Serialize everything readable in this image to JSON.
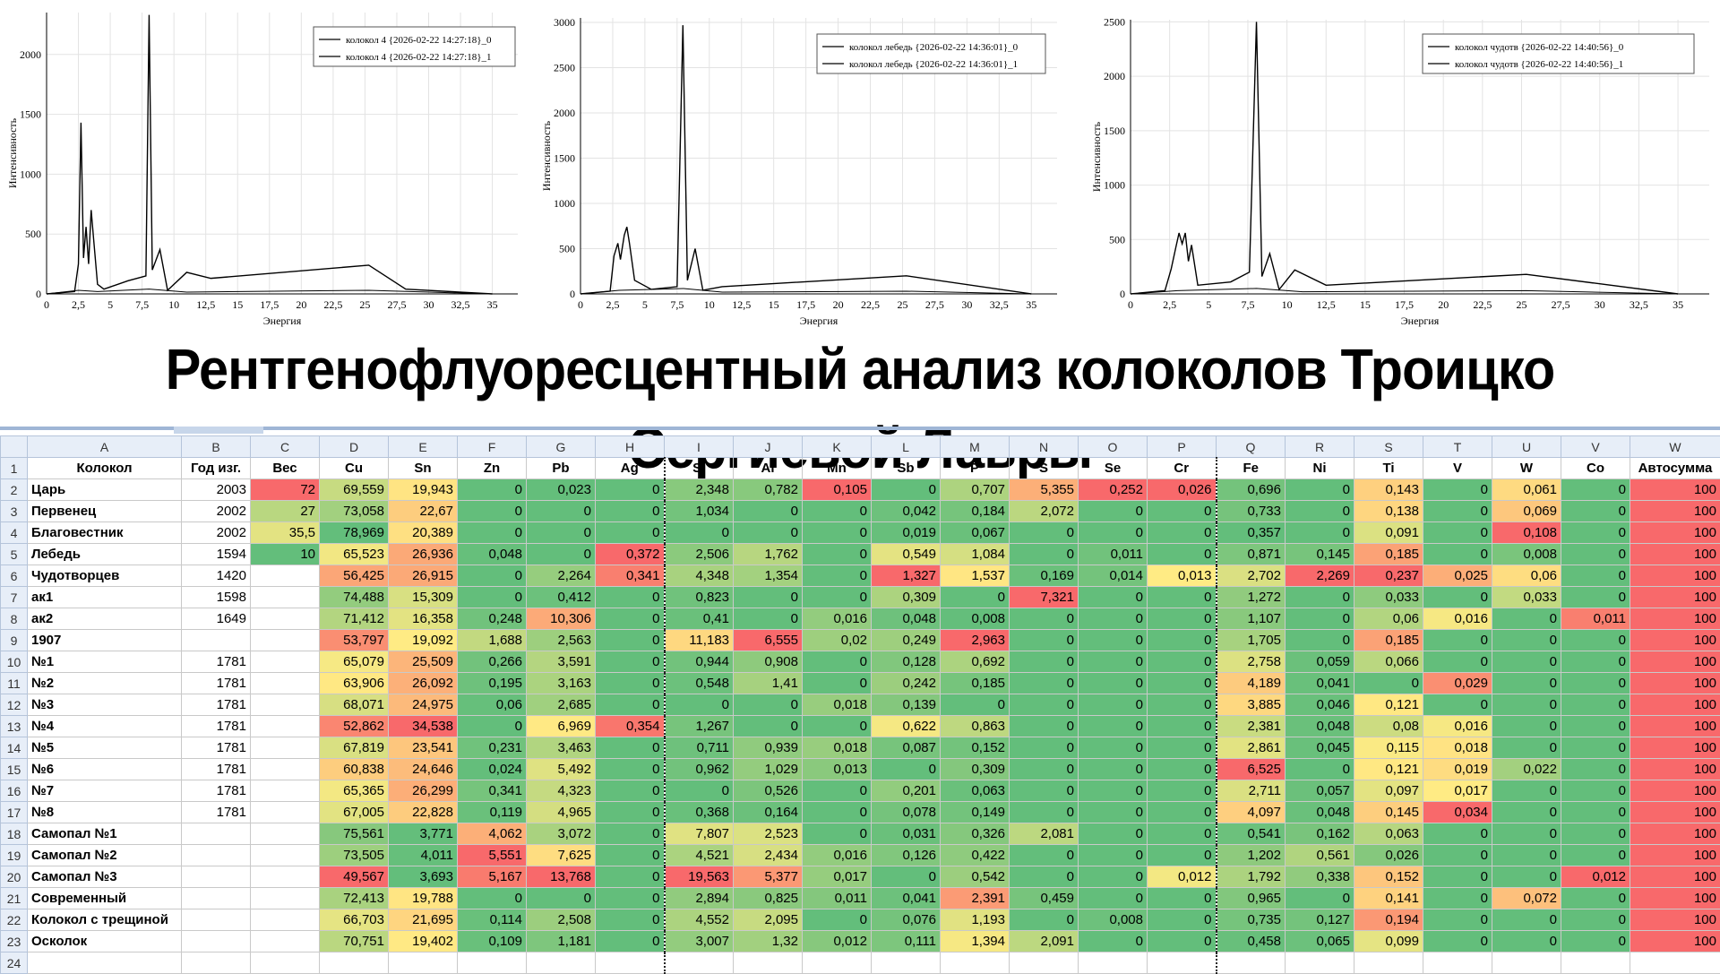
{
  "charts": [
    {
      "legend": [
        "колокол 4 {2026-02-22 14:27:18}_0",
        "колокол 4 {2026-02-22 14:27:18}_1"
      ],
      "ylabel": "Интенсивность",
      "xlabel": "Энергия",
      "xticks": [
        "0",
        "2,5",
        "5",
        "7,5",
        "10",
        "12,5",
        "15",
        "17,5",
        "20",
        "22,5",
        "25",
        "27,5",
        "30",
        "32,5",
        "35"
      ],
      "yticks": [
        "0",
        "500",
        "1000",
        "1500",
        "2000"
      ],
      "ymax": 2350
    },
    {
      "legend": [
        "колокол лебедь {2026-02-22 14:36:01}_0",
        "колокол лебедь {2026-02-22 14:36:01}_1"
      ],
      "ylabel": "Интенсивность",
      "xlabel": "Энергия",
      "xticks": [
        "0",
        "2,5",
        "5",
        "7,5",
        "10",
        "12,5",
        "15",
        "17,5",
        "20",
        "22,5",
        "25",
        "27,5",
        "30",
        "32,5",
        "35"
      ],
      "yticks": [
        "0",
        "500",
        "1000",
        "1500",
        "2000",
        "2500",
        "3000"
      ],
      "ymax": 3050
    },
    {
      "legend": [
        "колокол чудотв {2026-02-22 14:40:56}_0",
        "колокол чудотв {2026-02-22 14:40:56}_1"
      ],
      "ylabel": "Интенсивность",
      "xlabel": "Энергия",
      "xticks": [
        "0",
        "2,5",
        "5",
        "7,5",
        "10",
        "12,5",
        "15",
        "17,5",
        "20",
        "22,5",
        "25",
        "27,5",
        "30",
        "32,5",
        "35"
      ],
      "yticks": [
        "0",
        "500",
        "1000",
        "1500",
        "2000",
        "2500"
      ],
      "ymax": 2520
    }
  ],
  "chart_data": [
    {
      "type": "line",
      "title": "",
      "xlabel": "Энергия",
      "ylabel": "Интенсивность",
      "xlim": [
        0,
        37
      ],
      "ylim": [
        0,
        2350
      ],
      "series": [
        {
          "name": "колокол 4 {2026-02-22 14:27:18}_0",
          "x": [
            0,
            2.2,
            2.5,
            2.7,
            2.9,
            3.1,
            3.3,
            3.5,
            3.7,
            4.0,
            4.5,
            6.4,
            7.8,
            8.05,
            8.3,
            8.9,
            9.5,
            11.0,
            12.9,
            25.3,
            28.2,
            35
          ],
          "y": [
            0,
            20,
            250,
            1430,
            300,
            560,
            250,
            700,
            450,
            80,
            40,
            110,
            150,
            2330,
            200,
            370,
            30,
            180,
            130,
            240,
            40,
            0
          ]
        },
        {
          "name": "колокол 4 {2026-02-22 14:27:18}_1",
          "x": [
            0,
            2.5,
            4,
            8.05,
            11,
            25.3,
            35
          ],
          "y": [
            0,
            30,
            20,
            40,
            15,
            30,
            0
          ]
        }
      ]
    },
    {
      "type": "line",
      "title": "",
      "xlabel": "Энергия",
      "ylabel": "Интенсивность",
      "xlim": [
        0,
        37
      ],
      "ylim": [
        0,
        3050
      ],
      "series": [
        {
          "name": "колокол лебедь {2026-02-22 14:36:01}_0",
          "x": [
            0,
            2.3,
            2.6,
            2.9,
            3.1,
            3.4,
            3.6,
            3.8,
            4.2,
            5.5,
            7.5,
            7.95,
            8.3,
            8.9,
            9.5,
            11.0,
            25.3,
            35
          ],
          "y": [
            0,
            30,
            420,
            560,
            380,
            650,
            740,
            560,
            150,
            50,
            80,
            2970,
            150,
            500,
            40,
            80,
            200,
            0
          ]
        },
        {
          "name": "колокол лебедь {2026-02-22 14:36:01}_1",
          "x": [
            0,
            3,
            8,
            11,
            25.3,
            35
          ],
          "y": [
            0,
            40,
            60,
            20,
            30,
            0
          ]
        }
      ]
    },
    {
      "type": "line",
      "title": "",
      "xlabel": "Энергия",
      "ylabel": "Интенсивность",
      "xlim": [
        0,
        37
      ],
      "ylim": [
        0,
        2520
      ],
      "series": [
        {
          "name": "колокол чудотв {2026-02-22 14:40:56}_0",
          "x": [
            0,
            2.2,
            2.6,
            2.9,
            3.1,
            3.3,
            3.5,
            3.7,
            3.9,
            4.3,
            6.4,
            7.6,
            8.05,
            8.4,
            8.9,
            9.5,
            10.5,
            12.5,
            25.3,
            35
          ],
          "y": [
            0,
            30,
            230,
            430,
            560,
            460,
            560,
            300,
            450,
            80,
            110,
            200,
            2500,
            160,
            370,
            40,
            220,
            80,
            180,
            0
          ]
        },
        {
          "name": "колокол чудотв {2026-02-22 14:40:56}_1",
          "x": [
            0,
            3,
            8.05,
            11,
            25.3,
            35
          ],
          "y": [
            0,
            30,
            50,
            20,
            30,
            0
          ]
        }
      ]
    },
    {
      "type": "table",
      "title": "Рентгенофлуоресцентный анализ колоколов Троицко Сергиевой Лавры",
      "columns": [
        "Колокол",
        "Год изг.",
        "Вес",
        "Cu",
        "Sn",
        "Zn",
        "Pb",
        "Ag",
        "Si",
        "Al",
        "Mn",
        "Sb",
        "P",
        "S",
        "Se",
        "Cr",
        "Fe",
        "Ni",
        "Ti",
        "V",
        "W",
        "Co",
        "Автосумма"
      ]
    }
  ],
  "banner": "Рентгенофлуоресцентный анализ колоколов Троицко Сергиевой Лавры",
  "sheet": {
    "col_letters": [
      "A",
      "B",
      "C",
      "D",
      "E",
      "F",
      "G",
      "H",
      "I",
      "J",
      "K",
      "L",
      "M",
      "N",
      "O",
      "P",
      "Q",
      "R",
      "S",
      "T",
      "U",
      "V",
      "W"
    ],
    "headers": [
      "Колокол",
      "Год изг.",
      "Вес",
      "Cu",
      "Sn",
      "Zn",
      "Pb",
      "Ag",
      "Si",
      "Al",
      "Mn",
      "Sb",
      "P",
      "S",
      "Se",
      "Cr",
      "Fe",
      "Ni",
      "Ti",
      "V",
      "W",
      "Co",
      "Автосумма"
    ],
    "rows": [
      [
        "Царь",
        "2003",
        "72",
        "69,559",
        "19,943",
        "0",
        "0,023",
        "0",
        "2,348",
        "0,782",
        "0,105",
        "0",
        "0,707",
        "5,355",
        "0,252",
        "0,026",
        "0,696",
        "0",
        "0,143",
        "0",
        "0,061",
        "0",
        "100"
      ],
      [
        "Первенец",
        "2002",
        "27",
        "73,058",
        "22,67",
        "0",
        "0",
        "0",
        "1,034",
        "0",
        "0",
        "0,042",
        "0,184",
        "2,072",
        "0",
        "0",
        "0,733",
        "0",
        "0,138",
        "0",
        "0,069",
        "0",
        "100"
      ],
      [
        "Благовестник",
        "2002",
        "35,5",
        "78,969",
        "20,389",
        "0",
        "0",
        "0",
        "0",
        "0",
        "0",
        "0,019",
        "0,067",
        "0",
        "0",
        "0",
        "0,357",
        "0",
        "0,091",
        "0",
        "0,108",
        "0",
        "100"
      ],
      [
        "Лебедь",
        "1594",
        "10",
        "65,523",
        "26,936",
        "0,048",
        "0",
        "0,372",
        "2,506",
        "1,762",
        "0",
        "0,549",
        "1,084",
        "0",
        "0,011",
        "0",
        "0,871",
        "0,145",
        "0,185",
        "0",
        "0,008",
        "0",
        "100"
      ],
      [
        "Чудотворцев",
        "1420",
        "",
        "56,425",
        "26,915",
        "0",
        "2,264",
        "0,341",
        "4,348",
        "1,354",
        "0",
        "1,327",
        "1,537",
        "0,169",
        "0,014",
        "0,013",
        "2,702",
        "2,269",
        "0,237",
        "0,025",
        "0,06",
        "0",
        "100"
      ],
      [
        "ак1",
        "1598",
        "",
        "74,488",
        "15,309",
        "0",
        "0,412",
        "0",
        "0,823",
        "0",
        "0",
        "0,309",
        "0",
        "7,321",
        "0",
        "0",
        "1,272",
        "0",
        "0,033",
        "0",
        "0,033",
        "0",
        "100"
      ],
      [
        "ак2",
        "1649",
        "",
        "71,412",
        "16,358",
        "0,248",
        "10,306",
        "0",
        "0,41",
        "0",
        "0,016",
        "0,048",
        "0,008",
        "0",
        "0",
        "0",
        "1,107",
        "0",
        "0,06",
        "0,016",
        "0",
        "0,011",
        "100"
      ],
      [
        "1907",
        "",
        "",
        "53,797",
        "19,092",
        "1,688",
        "2,563",
        "0",
        "11,183",
        "6,555",
        "0,02",
        "0,249",
        "2,963",
        "0",
        "0",
        "0",
        "1,705",
        "0",
        "0,185",
        "0",
        "0",
        "0",
        "100"
      ],
      [
        "№1",
        "1781",
        "",
        "65,079",
        "25,509",
        "0,266",
        "3,591",
        "0",
        "0,944",
        "0,908",
        "0",
        "0,128",
        "0,692",
        "0",
        "0",
        "0",
        "2,758",
        "0,059",
        "0,066",
        "0",
        "0",
        "0",
        "100"
      ],
      [
        "№2",
        "1781",
        "",
        "63,906",
        "26,092",
        "0,195",
        "3,163",
        "0",
        "0,548",
        "1,41",
        "0",
        "0,242",
        "0,185",
        "0",
        "0",
        "0",
        "4,189",
        "0,041",
        "0",
        "0,029",
        "0",
        "0",
        "100"
      ],
      [
        "№3",
        "1781",
        "",
        "68,071",
        "24,975",
        "0,06",
        "2,685",
        "0",
        "0",
        "0",
        "0,018",
        "0,139",
        "0",
        "0",
        "0",
        "0",
        "3,885",
        "0,046",
        "0,121",
        "0",
        "0",
        "0",
        "100"
      ],
      [
        "№4",
        "1781",
        "",
        "52,862",
        "34,538",
        "0",
        "6,969",
        "0,354",
        "1,267",
        "0",
        "0",
        "0,622",
        "0,863",
        "0",
        "0",
        "0",
        "2,381",
        "0,048",
        "0,08",
        "0,016",
        "0",
        "0",
        "100"
      ],
      [
        "№5",
        "1781",
        "",
        "67,819",
        "23,541",
        "0,231",
        "3,463",
        "0",
        "0,711",
        "0,939",
        "0,018",
        "0,087",
        "0,152",
        "0",
        "0",
        "0",
        "2,861",
        "0,045",
        "0,115",
        "0,018",
        "0",
        "0",
        "100"
      ],
      [
        "№6",
        "1781",
        "",
        "60,838",
        "24,646",
        "0,024",
        "5,492",
        "0",
        "0,962",
        "1,029",
        "0,013",
        "0",
        "0,309",
        "0",
        "0",
        "0",
        "6,525",
        "0",
        "0,121",
        "0,019",
        "0,022",
        "0",
        "100"
      ],
      [
        "№7",
        "1781",
        "",
        "65,365",
        "26,299",
        "0,341",
        "4,323",
        "0",
        "0",
        "0,526",
        "0",
        "0,201",
        "0,063",
        "0",
        "0",
        "0",
        "2,711",
        "0,057",
        "0,097",
        "0,017",
        "0",
        "0",
        "100"
      ],
      [
        "№8",
        "1781",
        "",
        "67,005",
        "22,828",
        "0,119",
        "4,965",
        "0",
        "0,368",
        "0,164",
        "0",
        "0,078",
        "0,149",
        "0",
        "0",
        "0",
        "4,097",
        "0,048",
        "0,145",
        "0,034",
        "0",
        "0",
        "100"
      ],
      [
        "Самопал №1",
        "",
        "",
        "75,561",
        "3,771",
        "4,062",
        "3,072",
        "0",
        "7,807",
        "2,523",
        "0",
        "0,031",
        "0,326",
        "2,081",
        "0",
        "0",
        "0,541",
        "0,162",
        "0,063",
        "0",
        "0",
        "0",
        "100"
      ],
      [
        "Самопал №2",
        "",
        "",
        "73,505",
        "4,011",
        "5,551",
        "7,625",
        "0",
        "4,521",
        "2,434",
        "0,016",
        "0,126",
        "0,422",
        "0",
        "0",
        "0",
        "1,202",
        "0,561",
        "0,026",
        "0",
        "0",
        "0",
        "100"
      ],
      [
        "Самопал №3",
        "",
        "",
        "49,567",
        "3,693",
        "5,167",
        "13,768",
        "0",
        "19,563",
        "5,377",
        "0,017",
        "0",
        "0,542",
        "0",
        "0",
        "0,012",
        "1,792",
        "0,338",
        "0,152",
        "0",
        "0",
        "0,012",
        "100"
      ],
      [
        "Современный",
        "",
        "",
        "72,413",
        "19,788",
        "0",
        "0",
        "0",
        "2,894",
        "0,825",
        "0,011",
        "0,041",
        "2,391",
        "0,459",
        "0",
        "0",
        "0,965",
        "0",
        "0,141",
        "0",
        "0,072",
        "0",
        "100"
      ],
      [
        "Колокол с трещиной",
        "",
        "",
        "66,703",
        "21,695",
        "0,114",
        "2,508",
        "0",
        "4,552",
        "2,095",
        "0",
        "0,076",
        "1,193",
        "0",
        "0,008",
        "0",
        "0,735",
        "0,127",
        "0,194",
        "0",
        "0",
        "0",
        "100"
      ],
      [
        "Осколок",
        "",
        "",
        "70,751",
        "19,402",
        "0,109",
        "1,181",
        "0",
        "3,007",
        "1,32",
        "0,012",
        "0,111",
        "1,394",
        "2,091",
        "0",
        "0",
        "0,458",
        "0,065",
        "0,099",
        "0",
        "0",
        "0",
        "100"
      ]
    ],
    "scale_colors": {
      "low": "#63be7b",
      "mid": "#ffeb84",
      "high": "#f8696b"
    }
  }
}
